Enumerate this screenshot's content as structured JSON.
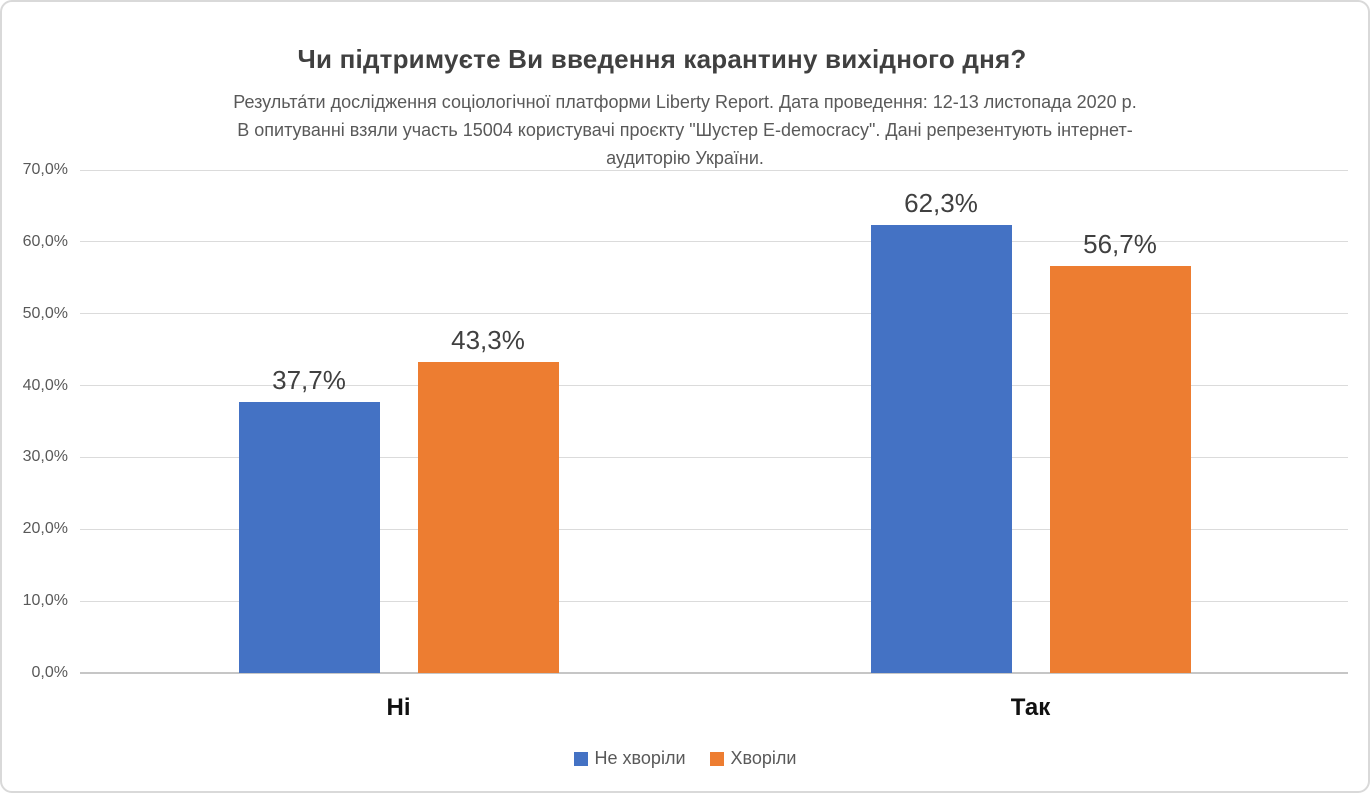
{
  "chart_data": {
    "type": "bar",
    "title": "Чи підтримуєте Ви введення карантину вихідного дня?",
    "subtitle_lines": [
      "Результа́ти дослідження соціологічної платформи Liberty Report. Дата проведення: 12-13 листопада 2020 р.",
      "В опитуванні взяли участь 15004 користувачі проєкту \"Шустер E-democracy\". Дані репрезентують інтернет-",
      "аудиторію України."
    ],
    "categories": [
      "Ні",
      "Так"
    ],
    "series": [
      {
        "name": "Не хворіли",
        "color": "#4472C4",
        "values": [
          37.7,
          62.3
        ],
        "labels": [
          "37,7%",
          "62,3%"
        ]
      },
      {
        "name": "Хворіли",
        "color": "#ED7D31",
        "values": [
          43.3,
          56.7
        ],
        "labels": [
          "43,3%",
          "56,7%"
        ]
      }
    ],
    "y_axis": {
      "min": 0,
      "max": 70,
      "ticks": [
        "70,0%",
        "60,0%",
        "50,0%",
        "40,0%",
        "30,0%",
        "20,0%",
        "10,0%",
        "0,0%"
      ],
      "grid": true
    },
    "legend_position": "bottom",
    "grid_color": "#DBDBDB"
  }
}
